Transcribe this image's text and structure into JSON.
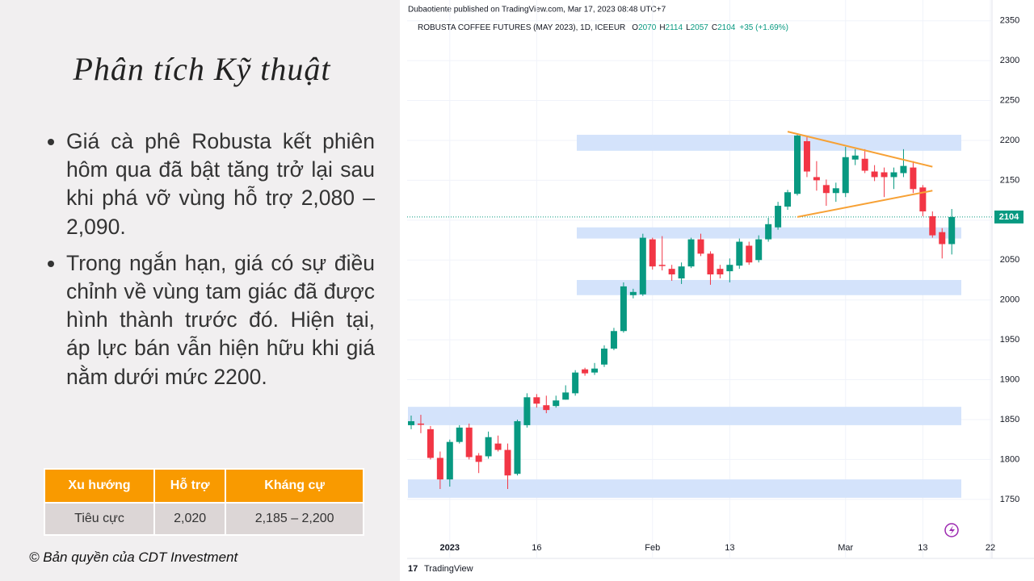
{
  "slide": {
    "title": "Phân tích Kỹ thuật",
    "bullets": [
      "Giá cà phê Robusta kết phiên hôm qua đã bật tăng trở lại sau khi phá vỡ vùng hỗ trợ 2,080 – 2,090.",
      "Trong ngắn hạn, giá có sự điều chỉnh về vùng tam giác đã được hình thành trước đó. Hiện tại, áp lực bán vẫn hiện hữu khi giá nằm dưới mức 2200."
    ],
    "table": {
      "header": [
        "Xu hướng",
        "Hỗ trợ",
        "Kháng cự"
      ],
      "rows": [
        [
          "Tiêu cực",
          "2,020",
          "2,185 – 2,200"
        ]
      ]
    },
    "copyright": "© Bản quyền của CDT Investment"
  },
  "chart_data": {
    "type": "candlestick",
    "published": "Dubaotiente published on TradingView.com, Mar 17, 2023 08:48 UTC+7",
    "symbol": "ROBUSTA COFFEE FUTURES (MAY 2023), 1D, ICEEUR",
    "ohlc_labels": [
      "O",
      "H",
      "L",
      "C"
    ],
    "change": "+35 (+1.69%)",
    "brand": "TradingView",
    "categories": [
      null,
      null,
      null,
      null,
      "2023",
      null,
      null,
      null,
      null,
      null,
      null,
      null,
      null,
      "16",
      null,
      null,
      null,
      null,
      null,
      null,
      null,
      null,
      null,
      null,
      null,
      "Feb",
      null,
      null,
      null,
      null,
      null,
      null,
      null,
      "13",
      null,
      null,
      null,
      null,
      null,
      null,
      null,
      null,
      null,
      null,
      null,
      "Mar",
      null,
      null,
      null,
      null,
      null,
      null,
      null,
      "13",
      null,
      null,
      null,
      null,
      null,
      null,
      "22"
    ],
    "open": [
      1843,
      1845,
      1838,
      1802,
      1775,
      1822,
      1840,
      1805,
      1804,
      1820,
      1812,
      1782,
      1843,
      1878,
      1868,
      1867,
      1875,
      1883,
      1913,
      1909,
      1919,
      1939,
      1961,
      2006,
      2007,
      2076,
      2044,
      2039,
      2027,
      2042,
      2076,
      2058,
      2039,
      2036,
      2043,
      2068,
      2050,
      2076,
      2091,
      2117,
      2133,
      2199,
      2154,
      2144,
      2134,
      2134,
      2176,
      2177,
      2161,
      2160,
      2154,
      2159,
      2166,
      2141,
      2105,
      2085,
      2070,
      null,
      null,
      null,
      null
    ],
    "high": [
      1855,
      1856,
      1842,
      1810,
      1825,
      1843,
      1845,
      1808,
      1835,
      1830,
      1820,
      1850,
      1883,
      1882,
      1880,
      1880,
      1893,
      1912,
      1915,
      1921,
      1943,
      1965,
      2022,
      2014,
      2083,
      2078,
      2080,
      2044,
      2047,
      2078,
      2083,
      2061,
      2044,
      2052,
      2077,
      2073,
      2081,
      2103,
      2123,
      2138,
      2209,
      2204,
      2174,
      2151,
      2147,
      2192,
      2189,
      2189,
      2169,
      2166,
      2166,
      2189,
      2174,
      2144,
      2111,
      2090,
      2114,
      null,
      null,
      null,
      null
    ],
    "low": [
      1838,
      1833,
      1800,
      1763,
      1766,
      1820,
      1800,
      1783,
      1801,
      1810,
      1763,
      1780,
      1840,
      1865,
      1858,
      1865,
      1875,
      1880,
      1905,
      1906,
      1916,
      1937,
      1959,
      2002,
      2005,
      2038,
      2037,
      2024,
      2020,
      2040,
      2055,
      2019,
      2027,
      2022,
      2039,
      2044,
      2047,
      2073,
      2088,
      2113,
      2131,
      2154,
      2137,
      2118,
      2123,
      2129,
      2169,
      2159,
      2149,
      2129,
      2139,
      2154,
      2134,
      2105,
      2078,
      2052,
      2057,
      null,
      null,
      null,
      null
    ],
    "close": [
      1848,
      1844,
      1802,
      1775,
      1822,
      1840,
      1803,
      1797,
      1828,
      1812,
      1780,
      1848,
      1878,
      1870,
      1862,
      1874,
      1884,
      1909,
      1908,
      1914,
      1939,
      1961,
      2017,
      2010,
      2078,
      2042,
      2043,
      2032,
      2042,
      2076,
      2058,
      2032,
      2032,
      2044,
      2073,
      2047,
      2076,
      2095,
      2118,
      2135,
      2206,
      2161,
      2150,
      2134,
      2140,
      2179,
      2181,
      2162,
      2154,
      2154,
      2160,
      2168,
      2139,
      2111,
      2081,
      2070,
      2104,
      null,
      null,
      null,
      null
    ],
    "up_color": "#089981",
    "down_color": "#f23645",
    "zones": [
      {
        "low": 2187,
        "high": 2207
      },
      {
        "low": 2077,
        "high": 2091
      },
      {
        "low": 2006,
        "high": 2025
      },
      {
        "low": 1843,
        "high": 1866
      },
      {
        "low": 1752,
        "high": 1775
      }
    ],
    "zone_color": "#d4e3fb",
    "trendlines": [
      {
        "values": [
          2211,
          2167
        ]
      },
      {
        "values": [
          2104,
          2137
        ]
      }
    ],
    "trendline_color": "#f7a135",
    "ylim": [
      1676,
      2376
    ],
    "yticks": [
      1750,
      1800,
      1850,
      1900,
      1950,
      2000,
      2050,
      2100,
      2150,
      2200,
      2250,
      2300,
      2350
    ],
    "grid": true
  }
}
